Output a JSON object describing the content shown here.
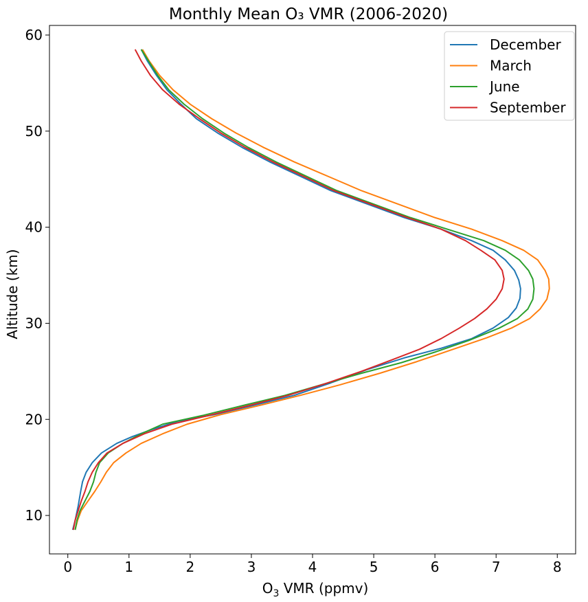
{
  "chart_data": {
    "type": "line",
    "title": "Monthly Mean O₃ VMR (2006-2020)",
    "xlabel_main": "O",
    "xlabel_sub": "3",
    "xlabel_unit": " VMR (ppmv)",
    "ylabel": "Altitude (km)",
    "xlim": [
      -0.3,
      8.3
    ],
    "ylim": [
      6,
      61
    ],
    "x_ticks": [
      0,
      1,
      2,
      3,
      4,
      5,
      6,
      7,
      8
    ],
    "x_tick_labels": [
      "0",
      "1",
      "2",
      "3",
      "4",
      "5",
      "6",
      "7",
      "8"
    ],
    "y_ticks": [
      10,
      20,
      30,
      40,
      50,
      60
    ],
    "y_tick_labels": [
      "10",
      "20",
      "30",
      "40",
      "50",
      "60"
    ],
    "grid": false,
    "legend_position": "top-right",
    "series": [
      {
        "name": "December",
        "color": "#1f77b4",
        "points": [
          [
            0.08,
            8.5
          ],
          [
            0.12,
            9.5
          ],
          [
            0.17,
            11.0
          ],
          [
            0.21,
            12.5
          ],
          [
            0.24,
            13.5
          ],
          [
            0.3,
            14.5
          ],
          [
            0.4,
            15.5
          ],
          [
            0.55,
            16.5
          ],
          [
            0.8,
            17.5
          ],
          [
            1.05,
            18.2
          ],
          [
            1.4,
            19.0
          ],
          [
            1.8,
            19.8
          ],
          [
            2.4,
            20.5
          ],
          [
            3.0,
            21.4
          ],
          [
            3.7,
            22.5
          ],
          [
            4.3,
            23.8
          ],
          [
            4.9,
            25.2
          ],
          [
            5.5,
            26.4
          ],
          [
            6.1,
            27.4
          ],
          [
            6.6,
            28.4
          ],
          [
            6.95,
            29.5
          ],
          [
            7.2,
            30.6
          ],
          [
            7.33,
            31.6
          ],
          [
            7.39,
            32.6
          ],
          [
            7.4,
            33.6
          ],
          [
            7.37,
            34.5
          ],
          [
            7.3,
            35.5
          ],
          [
            7.15,
            36.6
          ],
          [
            6.95,
            37.6
          ],
          [
            6.6,
            38.6
          ],
          [
            6.1,
            39.8
          ],
          [
            5.5,
            41.0
          ],
          [
            4.9,
            42.4
          ],
          [
            4.3,
            43.8
          ],
          [
            3.8,
            45.3
          ],
          [
            3.3,
            46.8
          ],
          [
            2.85,
            48.3
          ],
          [
            2.45,
            49.8
          ],
          [
            2.1,
            51.3
          ],
          [
            1.85,
            52.8
          ],
          [
            1.62,
            54.3
          ],
          [
            1.45,
            55.8
          ],
          [
            1.3,
            57.3
          ],
          [
            1.2,
            58.5
          ]
        ]
      },
      {
        "name": "March",
        "color": "#ff7f0e",
        "points": [
          [
            0.12,
            8.5
          ],
          [
            0.16,
            9.5
          ],
          [
            0.22,
            10.5
          ],
          [
            0.33,
            11.5
          ],
          [
            0.44,
            12.5
          ],
          [
            0.54,
            13.5
          ],
          [
            0.63,
            14.5
          ],
          [
            0.75,
            15.5
          ],
          [
            0.95,
            16.5
          ],
          [
            1.2,
            17.5
          ],
          [
            1.55,
            18.5
          ],
          [
            1.95,
            19.5
          ],
          [
            2.5,
            20.5
          ],
          [
            3.1,
            21.4
          ],
          [
            3.8,
            22.5
          ],
          [
            4.45,
            23.6
          ],
          [
            5.1,
            24.8
          ],
          [
            5.7,
            26.0
          ],
          [
            6.3,
            27.3
          ],
          [
            6.85,
            28.5
          ],
          [
            7.25,
            29.5
          ],
          [
            7.55,
            30.5
          ],
          [
            7.72,
            31.5
          ],
          [
            7.83,
            32.5
          ],
          [
            7.87,
            33.6
          ],
          [
            7.86,
            34.6
          ],
          [
            7.8,
            35.5
          ],
          [
            7.68,
            36.6
          ],
          [
            7.45,
            37.6
          ],
          [
            7.1,
            38.6
          ],
          [
            6.6,
            39.8
          ],
          [
            6.0,
            41.0
          ],
          [
            5.4,
            42.4
          ],
          [
            4.8,
            43.8
          ],
          [
            4.25,
            45.3
          ],
          [
            3.7,
            46.8
          ],
          [
            3.2,
            48.3
          ],
          [
            2.75,
            49.8
          ],
          [
            2.35,
            51.3
          ],
          [
            2.0,
            52.8
          ],
          [
            1.72,
            54.3
          ],
          [
            1.5,
            55.8
          ],
          [
            1.33,
            57.3
          ],
          [
            1.22,
            58.5
          ]
        ]
      },
      {
        "name": "June",
        "color": "#2ca02c",
        "points": [
          [
            0.12,
            8.5
          ],
          [
            0.15,
            9.5
          ],
          [
            0.2,
            10.5
          ],
          [
            0.28,
            11.5
          ],
          [
            0.36,
            12.5
          ],
          [
            0.42,
            13.5
          ],
          [
            0.46,
            14.5
          ],
          [
            0.52,
            15.5
          ],
          [
            0.66,
            16.5
          ],
          [
            0.9,
            17.5
          ],
          [
            1.2,
            18.5
          ],
          [
            1.55,
            19.5
          ],
          [
            2.2,
            20.4
          ],
          [
            2.9,
            21.5
          ],
          [
            3.55,
            22.5
          ],
          [
            4.2,
            23.7
          ],
          [
            4.8,
            24.8
          ],
          [
            5.45,
            25.9
          ],
          [
            6.0,
            27.0
          ],
          [
            6.55,
            28.2
          ],
          [
            7.05,
            29.5
          ],
          [
            7.35,
            30.5
          ],
          [
            7.52,
            31.5
          ],
          [
            7.6,
            32.5
          ],
          [
            7.62,
            33.6
          ],
          [
            7.6,
            34.6
          ],
          [
            7.53,
            35.5
          ],
          [
            7.38,
            36.6
          ],
          [
            7.15,
            37.6
          ],
          [
            6.8,
            38.6
          ],
          [
            6.2,
            39.8
          ],
          [
            5.6,
            41.0
          ],
          [
            5.0,
            42.4
          ],
          [
            4.4,
            43.8
          ],
          [
            3.9,
            45.3
          ],
          [
            3.4,
            46.8
          ],
          [
            2.95,
            48.3
          ],
          [
            2.55,
            49.8
          ],
          [
            2.2,
            51.3
          ],
          [
            1.9,
            52.8
          ],
          [
            1.65,
            54.3
          ],
          [
            1.47,
            55.8
          ],
          [
            1.32,
            57.3
          ],
          [
            1.2,
            58.5
          ]
        ]
      },
      {
        "name": "September",
        "color": "#d62728",
        "points": [
          [
            0.09,
            8.5
          ],
          [
            0.12,
            9.5
          ],
          [
            0.17,
            10.5
          ],
          [
            0.22,
            11.5
          ],
          [
            0.28,
            12.5
          ],
          [
            0.33,
            13.5
          ],
          [
            0.4,
            14.5
          ],
          [
            0.5,
            15.5
          ],
          [
            0.64,
            16.5
          ],
          [
            0.9,
            17.5
          ],
          [
            1.25,
            18.5
          ],
          [
            1.7,
            19.5
          ],
          [
            2.3,
            20.4
          ],
          [
            3.0,
            21.5
          ],
          [
            3.6,
            22.5
          ],
          [
            4.2,
            23.7
          ],
          [
            4.8,
            25.0
          ],
          [
            5.3,
            26.2
          ],
          [
            5.75,
            27.3
          ],
          [
            6.1,
            28.4
          ],
          [
            6.4,
            29.5
          ],
          [
            6.65,
            30.5
          ],
          [
            6.85,
            31.5
          ],
          [
            7.0,
            32.5
          ],
          [
            7.1,
            33.6
          ],
          [
            7.13,
            34.6
          ],
          [
            7.1,
            35.5
          ],
          [
            6.98,
            36.6
          ],
          [
            6.75,
            37.6
          ],
          [
            6.5,
            38.6
          ],
          [
            6.1,
            39.8
          ],
          [
            5.55,
            41.0
          ],
          [
            4.95,
            42.4
          ],
          [
            4.35,
            43.8
          ],
          [
            3.85,
            45.3
          ],
          [
            3.35,
            46.8
          ],
          [
            2.9,
            48.3
          ],
          [
            2.5,
            49.8
          ],
          [
            2.15,
            51.3
          ],
          [
            1.82,
            52.8
          ],
          [
            1.55,
            54.3
          ],
          [
            1.35,
            55.8
          ],
          [
            1.2,
            57.3
          ],
          [
            1.1,
            58.5
          ]
        ]
      }
    ]
  }
}
